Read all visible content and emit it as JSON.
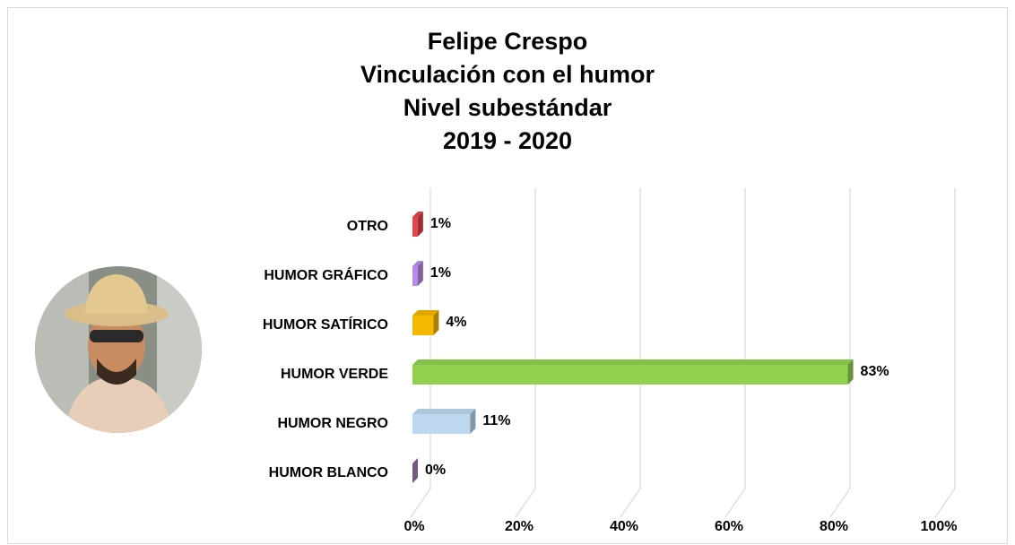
{
  "chart_data": {
    "type": "bar",
    "orientation": "horizontal",
    "title": [
      "Felipe Crespo",
      "Vinculación con el humor",
      "Nivel subestándar",
      "2019 - 2020"
    ],
    "categories": [
      "OTRO",
      "HUMOR GRÁFICO",
      "HUMOR SATÍRICO",
      "HUMOR VERDE",
      "HUMOR NEGRO",
      "HUMOR BLANCO"
    ],
    "values": [
      1,
      1,
      4,
      83,
      11,
      0
    ],
    "value_labels": [
      "1%",
      "1%",
      "4%",
      "83%",
      "11%",
      "0%"
    ],
    "colors": [
      "#e2464a",
      "#b98ae6",
      "#f5b800",
      "#92d050",
      "#bdd7ee",
      "#a77fb2"
    ],
    "xlim": [
      0,
      100
    ],
    "xticks": [
      {
        "value": 0,
        "label": "0%"
      },
      {
        "value": 20,
        "label": "20%"
      },
      {
        "value": 40,
        "label": "40%"
      },
      {
        "value": 60,
        "label": "60%"
      },
      {
        "value": 80,
        "label": "80%"
      },
      {
        "value": 100,
        "label": "100%"
      }
    ],
    "grid": true
  }
}
